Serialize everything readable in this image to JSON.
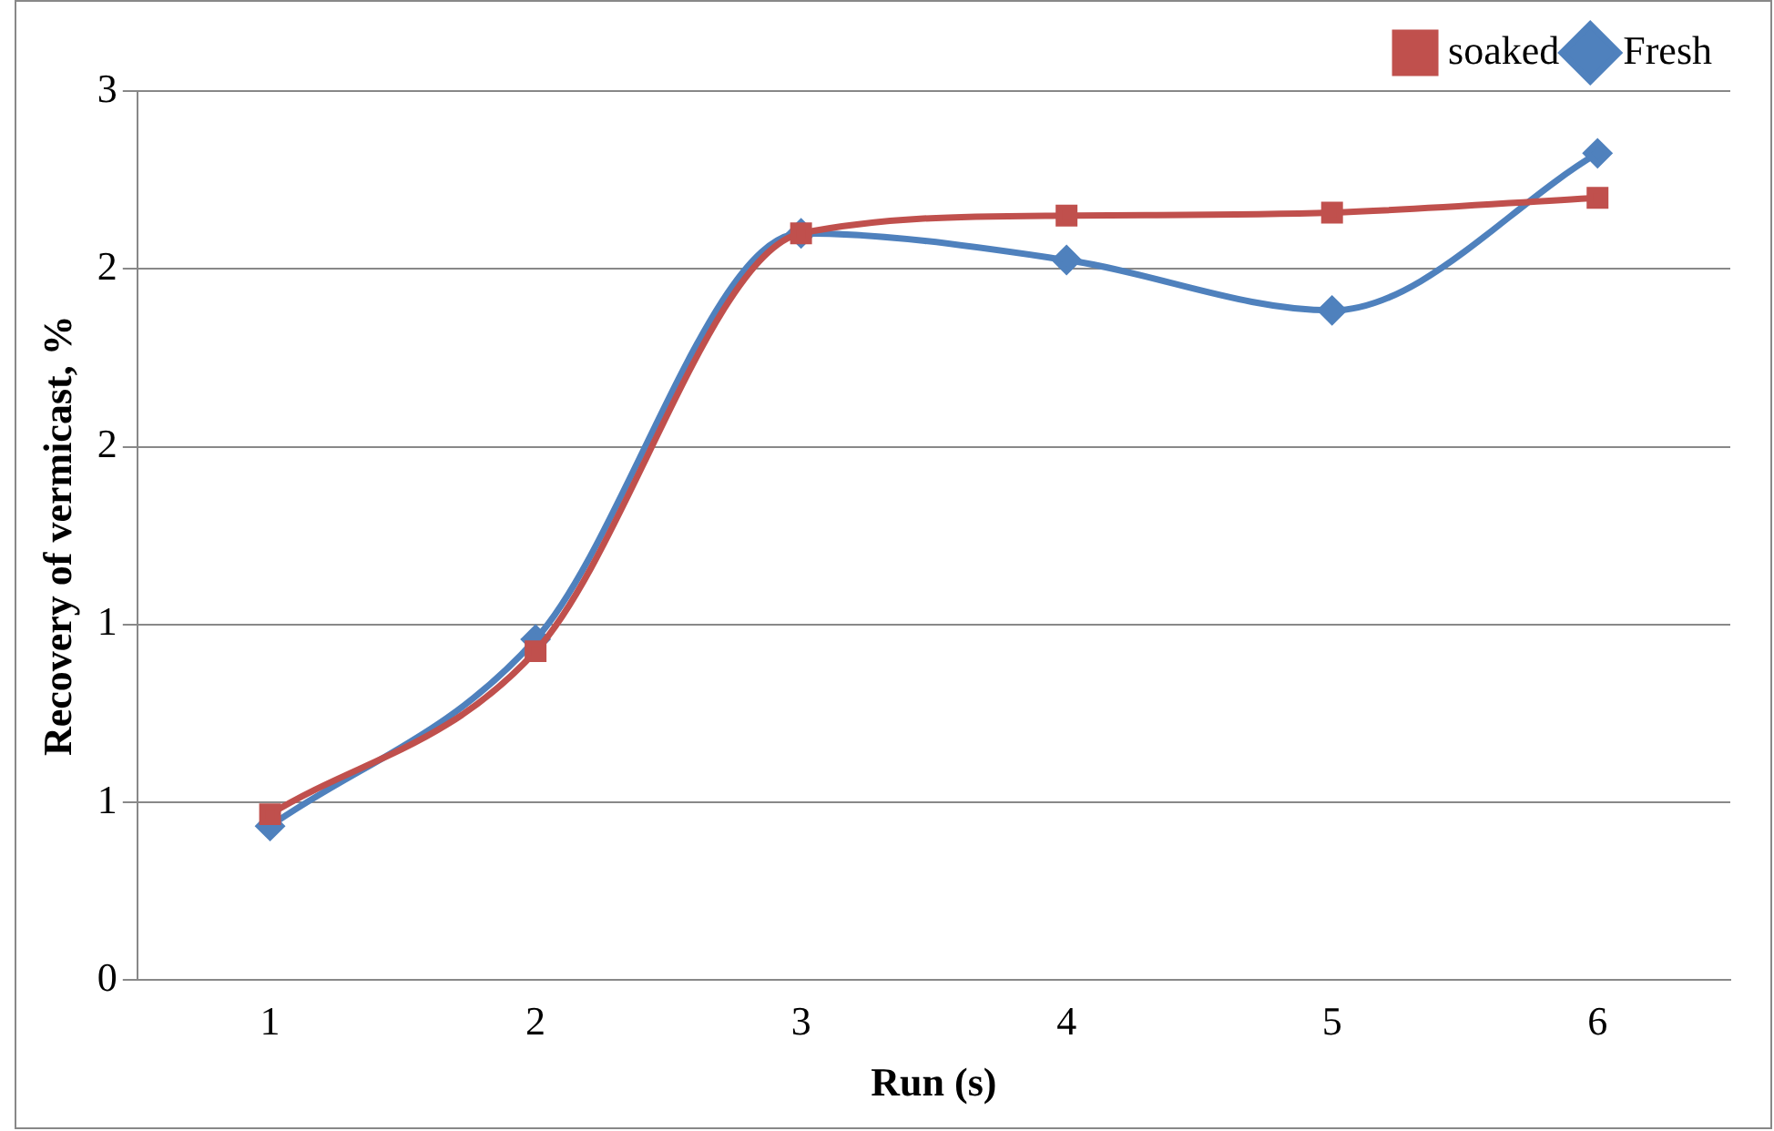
{
  "chart_data": {
    "type": "line",
    "xlabel": "Run (s)",
    "ylabel": "Recovery of vermicast, %",
    "categories": [
      "1",
      "2",
      "3",
      "4",
      "5",
      "6"
    ],
    "series": [
      {
        "name": "Fresh",
        "color": "#4f81bd",
        "marker": "diamond",
        "values": [
          0.52,
          1.15,
          2.52,
          2.43,
          2.26,
          2.79
        ]
      },
      {
        "name": "soaked",
        "color": "#c0504d",
        "marker": "square",
        "values": [
          0.56,
          1.11,
          2.52,
          2.58,
          2.59,
          2.64
        ]
      }
    ],
    "ylim": [
      0,
      3
    ],
    "yticks": [
      0,
      {
        "value": 0.6,
        "label": "1"
      },
      {
        "value": 1.2,
        "label": "1"
      },
      {
        "value": 1.8,
        "label": "2"
      },
      {
        "value": 2.4,
        "label": "2"
      },
      3
    ],
    "grid": "y",
    "legend": "top right"
  }
}
